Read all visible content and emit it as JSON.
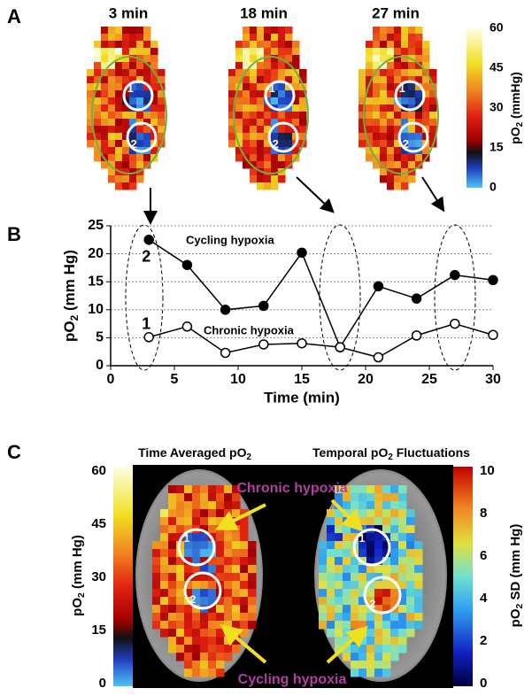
{
  "panel_labels": [
    "A",
    "B",
    "C"
  ],
  "panel_a": {
    "titles": [
      "3 min",
      "18 min",
      "27 min"
    ],
    "colorbar": {
      "label_parts": [
        "pO",
        "2",
        " (mmHg)"
      ],
      "ticks": [
        0,
        15,
        30,
        45,
        60
      ]
    },
    "roi_labels": [
      "1",
      "2"
    ]
  },
  "chart_data": {
    "type": "line",
    "ylabel_parts": [
      "pO",
      "2",
      " (mm Hg)"
    ],
    "xlabel": "Time (min)",
    "x": [
      3,
      6,
      9,
      12,
      15,
      18,
      21,
      24,
      27,
      30
    ],
    "series": [
      {
        "name": "2",
        "color": "#000000",
        "marker_fill": "#000000",
        "values": [
          22.5,
          18,
          10,
          10.7,
          20.2,
          3.3,
          14.2,
          12,
          16.2,
          15.3
        ]
      },
      {
        "name": "1",
        "color": "#000000",
        "marker_fill": "#ffffff",
        "values": [
          5.1,
          7,
          2.3,
          3.8,
          4,
          3.3,
          1.5,
          5.4,
          7.5,
          5.5
        ]
      }
    ],
    "annotations": [
      "Cycling hypoxia",
      "Chronic hypoxia"
    ],
    "xlim": [
      0,
      30
    ],
    "xticks": [
      0,
      5,
      10,
      15,
      20,
      25,
      30
    ],
    "ylim": [
      0,
      25
    ],
    "yticks": [
      0,
      5,
      10,
      15,
      20,
      25
    ],
    "grid": true
  },
  "panel_c": {
    "titles": [
      [
        "Time Averaged pO",
        "2"
      ],
      [
        "Temporal pO",
        "2",
        " Fluctuations"
      ]
    ],
    "left_colorbar": {
      "label_parts": [
        "pO",
        "2",
        " (mm Hg)"
      ],
      "ticks": [
        0,
        15,
        30,
        45,
        60
      ]
    },
    "right_colorbar": {
      "label_parts": [
        "pO",
        "2",
        " SD (mm Hg)"
      ],
      "ticks": [
        0,
        2,
        4,
        6,
        8,
        10
      ]
    },
    "annotations": [
      "Chronic hypoxia",
      "Cycling hypoxia"
    ],
    "roi_labels": [
      "1",
      "2"
    ]
  }
}
